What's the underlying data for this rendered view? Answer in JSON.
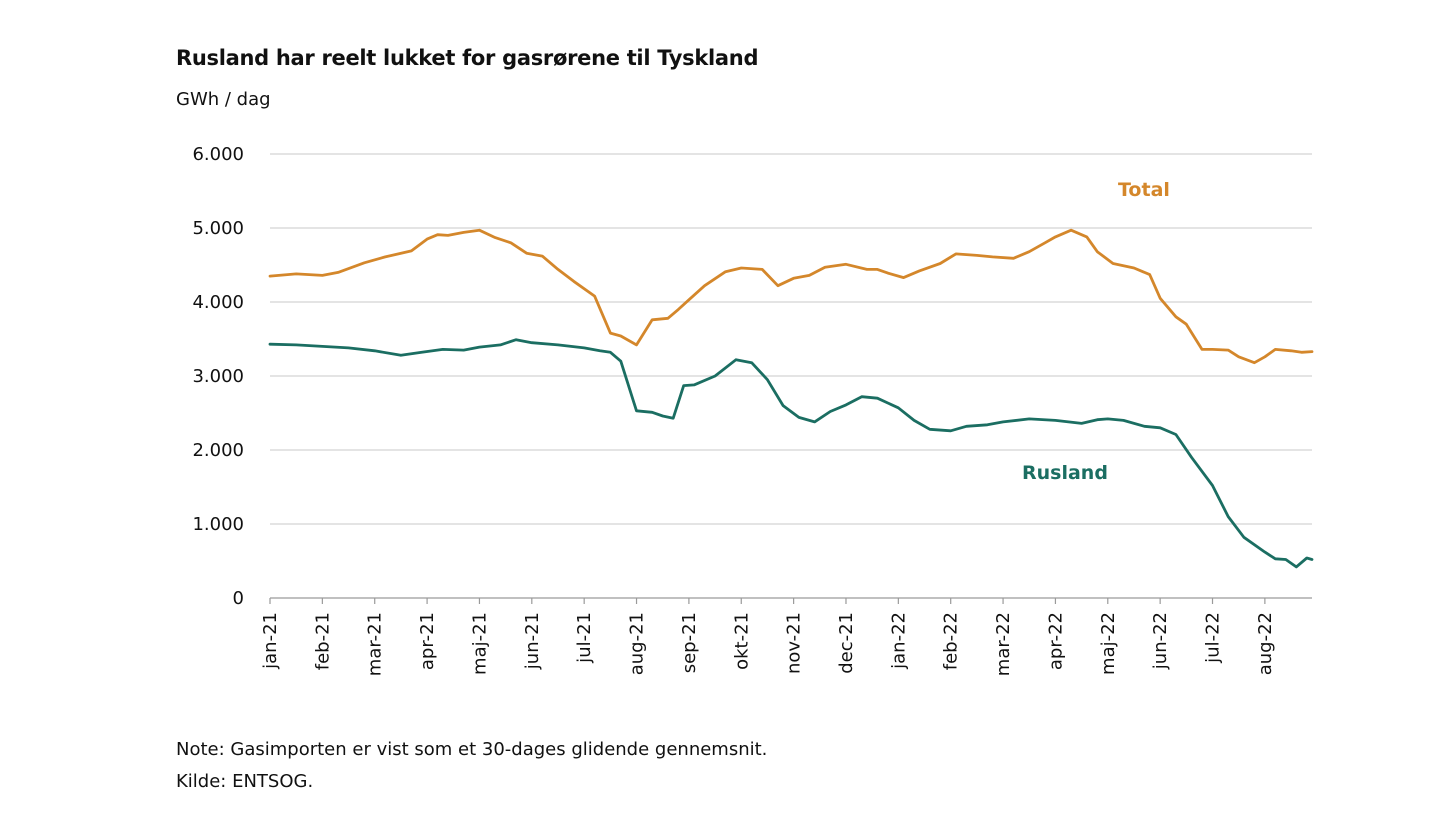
{
  "chart_data": {
    "type": "line",
    "title": "Rusland har reelt lukket for gasrørene til Tyskland",
    "ylabel": "GWh/dag",
    "xlabel": "",
    "ylim": [
      0,
      6000
    ],
    "yticks": [
      0,
      1000,
      2000,
      3000,
      4000,
      5000,
      6000
    ],
    "ytick_labels": [
      "0",
      "1.000",
      "2.000",
      "3.000",
      "4.000",
      "5.000",
      "6.000"
    ],
    "grid": true,
    "x_range_months": [
      0,
      19.9
    ],
    "categories": [
      "jan-21",
      "feb-21",
      "mar-21",
      "apr-21",
      "maj-21",
      "jun-21",
      "jul-21",
      "aug-21",
      "sep-21",
      "okt-21",
      "nov-21",
      "dec-21",
      "jan-22",
      "feb-22",
      "mar-22",
      "apr-22",
      "maj-22",
      "jun-22",
      "jul-22",
      "aug-22"
    ],
    "series": [
      {
        "name": "Total",
        "color": "#d4872b",
        "label_position": "upper-right",
        "x": [
          0,
          0.5,
          1,
          1.3,
          1.8,
          2.2,
          2.7,
          3.0,
          3.2,
          3.4,
          3.7,
          4.0,
          4.3,
          4.6,
          4.9,
          5.2,
          5.5,
          5.8,
          6.2,
          6.5,
          6.7,
          7.0,
          7.3,
          7.6,
          7.8,
          8.0,
          8.3,
          8.7,
          9.0,
          9.4,
          9.7,
          10.0,
          10.3,
          10.6,
          11.0,
          11.4,
          11.6,
          11.8,
          12.1,
          12.4,
          12.8,
          13.1,
          13.5,
          13.8,
          14.2,
          14.5,
          14.8,
          15.0,
          15.3,
          15.6,
          15.8,
          16.1,
          16.5,
          16.8,
          17.0,
          17.3,
          17.5,
          17.8,
          18.0,
          18.3,
          18.5,
          18.8,
          19.0,
          19.2,
          19.5,
          19.7,
          19.9
        ],
        "values": [
          4350,
          4380,
          4360,
          4400,
          4530,
          4610,
          4690,
          4850,
          4910,
          4900,
          4940,
          4970,
          4870,
          4800,
          4660,
          4620,
          4440,
          4280,
          4080,
          3580,
          3540,
          3420,
          3760,
          3780,
          3900,
          4030,
          4220,
          4410,
          4460,
          4440,
          4220,
          4320,
          4360,
          4470,
          4510,
          4440,
          4440,
          4390,
          4330,
          4420,
          4520,
          4650,
          4630,
          4610,
          4590,
          4680,
          4800,
          4880,
          4970,
          4880,
          4680,
          4520,
          4460,
          4370,
          4050,
          3800,
          3700,
          3360,
          3360,
          3350,
          3260,
          3180,
          3260,
          3360,
          3340,
          3320,
          3330
        ]
      },
      {
        "name": "Rusland",
        "color": "#1b6e62",
        "label_position": "mid-right",
        "x": [
          0,
          0.5,
          1,
          1.5,
          2.0,
          2.5,
          2.9,
          3.3,
          3.7,
          4.0,
          4.4,
          4.7,
          5.0,
          5.5,
          6.0,
          6.3,
          6.5,
          6.7,
          7.0,
          7.3,
          7.5,
          7.7,
          7.9,
          8.1,
          8.5,
          8.9,
          9.2,
          9.5,
          9.8,
          10.1,
          10.4,
          10.7,
          11.0,
          11.3,
          11.6,
          12.0,
          12.3,
          12.6,
          13.0,
          13.3,
          13.7,
          14.0,
          14.5,
          15.0,
          15.5,
          15.8,
          16.0,
          16.3,
          16.7,
          17.0,
          17.3,
          17.6,
          18.0,
          18.3,
          18.6,
          19.0,
          19.2,
          19.4,
          19.6,
          19.8,
          19.9
        ],
        "values": [
          3430,
          3420,
          3400,
          3380,
          3340,
          3280,
          3320,
          3360,
          3350,
          3390,
          3420,
          3490,
          3450,
          3420,
          3380,
          3340,
          3320,
          3200,
          2530,
          2510,
          2460,
          2430,
          2870,
          2880,
          3000,
          3220,
          3180,
          2950,
          2600,
          2440,
          2380,
          2520,
          2610,
          2720,
          2700,
          2570,
          2400,
          2280,
          2260,
          2320,
          2340,
          2380,
          2420,
          2400,
          2360,
          2410,
          2420,
          2400,
          2320,
          2300,
          2210,
          1900,
          1520,
          1100,
          820,
          620,
          530,
          520,
          420,
          540,
          520
        ]
      }
    ]
  },
  "labels": {
    "ylabel": "GWh / dag"
  },
  "notes": {
    "note": "Note: Gasimporten er vist som et 30-dages glidende gennemsnit.",
    "source": "Kilde:  ENTSOG."
  }
}
